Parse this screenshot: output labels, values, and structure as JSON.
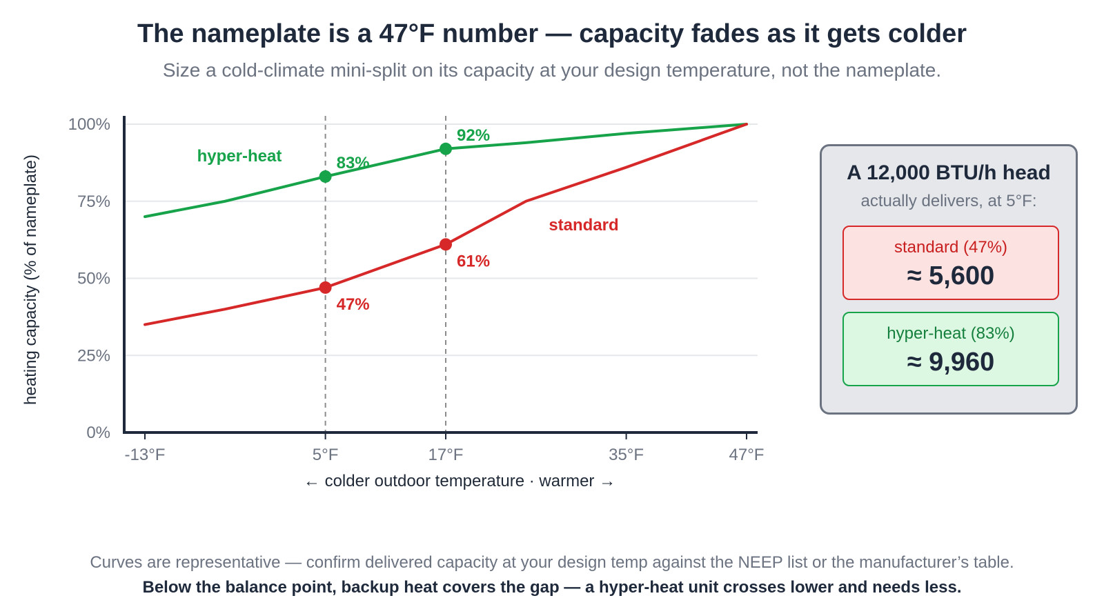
{
  "header": {
    "title": "The nameplate is a 47°F number — capacity fades as it gets colder",
    "subtitle": "Size a cold-climate mini-split on its capacity at your design temperature, not the nameplate."
  },
  "chart_data": {
    "type": "line",
    "xlabel": "← colder outdoor temperature · warmer →",
    "ylabel": "heating capacity (% of nameplate)",
    "x_ticks": [
      {
        "value": -13,
        "label": "-13°F"
      },
      {
        "value": 5,
        "label": "5°F"
      },
      {
        "value": 17,
        "label": "17°F"
      },
      {
        "value": 35,
        "label": "35°F"
      },
      {
        "value": 47,
        "label": "47°F"
      }
    ],
    "y_ticks": [
      {
        "value": 0,
        "label": "0%"
      },
      {
        "value": 25,
        "label": "25%"
      },
      {
        "value": 50,
        "label": "50%"
      },
      {
        "value": 75,
        "label": "75%"
      },
      {
        "value": 100,
        "label": "100%"
      }
    ],
    "xlim": [
      -15,
      48
    ],
    "ylim": [
      0,
      100
    ],
    "grid": true,
    "vertical_markers": [
      5,
      17
    ],
    "series": [
      {
        "name": "hyper-heat",
        "color": "#16a34a",
        "points": [
          {
            "x": -13,
            "y": 70
          },
          {
            "x": -5,
            "y": 75
          },
          {
            "x": 5,
            "y": 83
          },
          {
            "x": 17,
            "y": 92
          },
          {
            "x": 25,
            "y": 94
          },
          {
            "x": 35,
            "y": 97
          },
          {
            "x": 47,
            "y": 100
          }
        ],
        "highlights": [
          {
            "x": 5,
            "y": 83,
            "label": "83%"
          },
          {
            "x": 17,
            "y": 92,
            "label": "92%"
          }
        ]
      },
      {
        "name": "standard",
        "color": "#d62828",
        "points": [
          {
            "x": -13,
            "y": 35
          },
          {
            "x": -5,
            "y": 40
          },
          {
            "x": 5,
            "y": 47
          },
          {
            "x": 17,
            "y": 61
          },
          {
            "x": 25,
            "y": 75
          },
          {
            "x": 35,
            "y": 86
          },
          {
            "x": 47,
            "y": 100
          }
        ],
        "highlights": [
          {
            "x": 5,
            "y": 47,
            "label": "47%"
          },
          {
            "x": 17,
            "y": 61,
            "label": "61%"
          }
        ]
      }
    ]
  },
  "card": {
    "title": "A 12,000 BTU/h head",
    "subtitle": "actually delivers, at 5°F:",
    "standard_label": "standard (47%)",
    "standard_value": "≈ 5,600",
    "hyper_label": "hyper-heat (83%)",
    "hyper_value": "≈ 9,960"
  },
  "footer": {
    "note": "Curves are representative — confirm delivered capacity at your design temp against the NEEP list or the manufacturer’s table.",
    "bold_note": "Below the balance point, backup heat covers the gap — a hyper-heat unit crosses lower and needs less."
  }
}
